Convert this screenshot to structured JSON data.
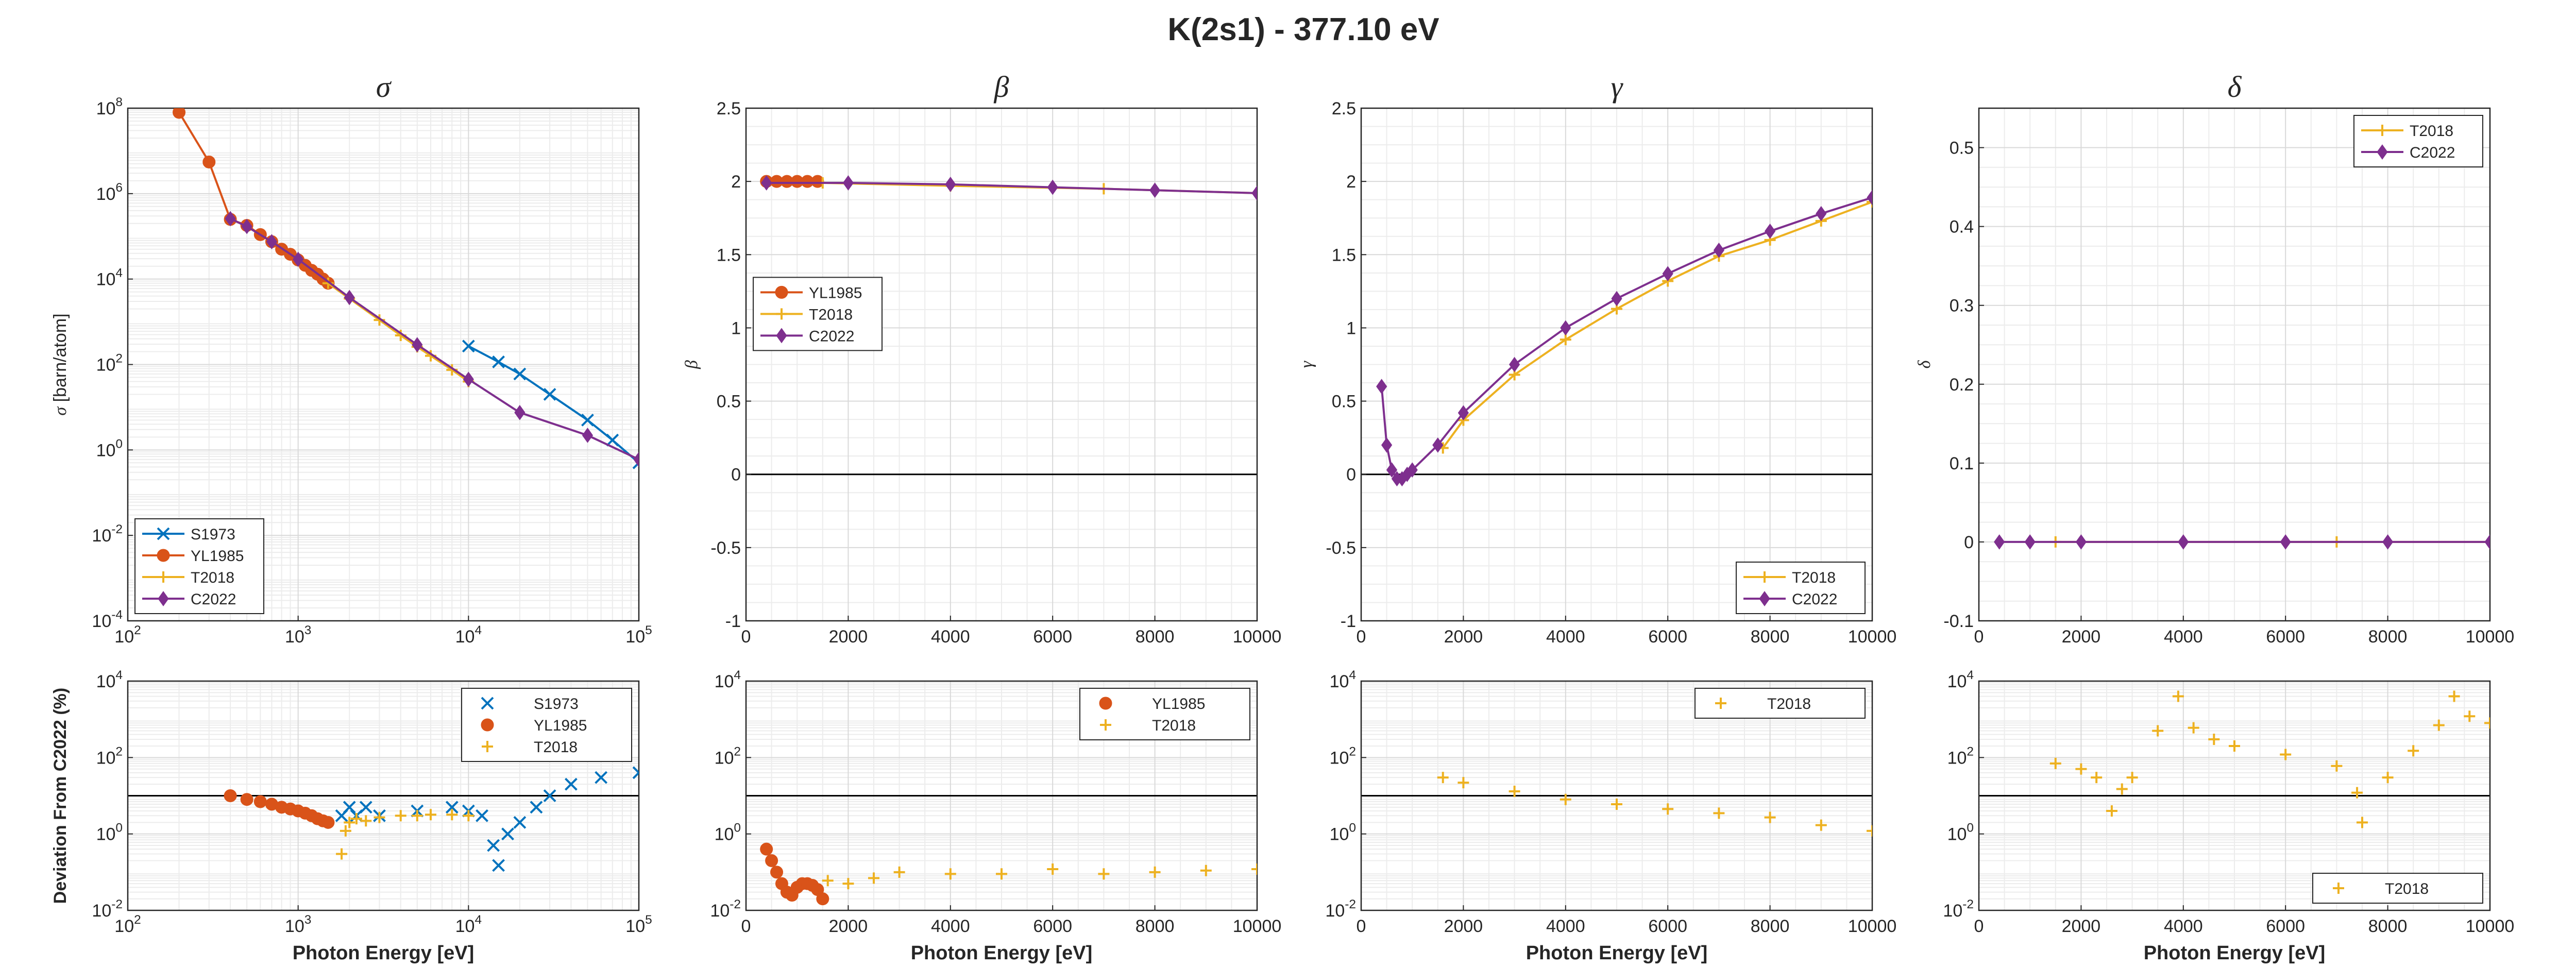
{
  "figure": {
    "title": "K(2s1) - 377.10 eV"
  },
  "chart_data": [
    {
      "id": "sigma",
      "type": "line",
      "title": "σ",
      "xlabel": "",
      "ylabel": "σ [barn/atom]",
      "xscale": "log",
      "yscale": "log",
      "xlim": [
        100,
        100000
      ],
      "ylim": [
        0.0001,
        100000000
      ],
      "xticks": [
        100,
        1000,
        10000,
        100000
      ],
      "xtick_labels": [
        "10^2",
        "10^3",
        "10^4",
        "10^5"
      ],
      "yticks": [
        0.0001,
        0.01,
        1,
        100,
        10000,
        1000000,
        100000000
      ],
      "ytick_labels": [
        "10^-4",
        "10^-2",
        "10^0",
        "10^2",
        "10^4",
        "10^6",
        "10^8"
      ],
      "grid": true,
      "minor_grid": true,
      "legend": {
        "location": "bottom-left",
        "entries": [
          "S1973",
          "YL1985",
          "T2018",
          "C2022"
        ]
      },
      "series": [
        {
          "name": "S1973",
          "color": "#0072BD",
          "marker": "x",
          "x": [
            10000,
            15000,
            20000,
            30000,
            50000,
            70000,
            100000
          ],
          "y": [
            270,
            115,
            60,
            20,
            5,
            1.7,
            0.5
          ]
        },
        {
          "name": "YL1985",
          "color": "#D95319",
          "marker": "o",
          "x": [
            200,
            300,
            400,
            500,
            600,
            700,
            800,
            900,
            1000,
            1100,
            1200,
            1300,
            1400,
            1500
          ],
          "y": [
            80000000,
            5500000,
            250000,
            180000,
            110000,
            75000,
            50000,
            38000,
            28000,
            21000,
            16000,
            13000,
            10000,
            8000
          ]
        },
        {
          "name": "T2018",
          "color": "#EDB120",
          "marker": "+",
          "x": [
            1500,
            2000,
            3000,
            4000,
            5000,
            6000,
            8000,
            10000
          ],
          "y": [
            8000,
            3500,
            1100,
            480,
            260,
            160,
            75,
            40
          ]
        },
        {
          "name": "C2022",
          "color": "#7E2F8E",
          "marker": "d",
          "x": [
            400,
            500,
            700,
            1000,
            2000,
            5000,
            10000,
            20000,
            50000,
            100000
          ],
          "y": [
            260000,
            170000,
            75000,
            29000,
            3700,
            290,
            45,
            7.5,
            2.2,
            0.6
          ]
        }
      ]
    },
    {
      "id": "beta",
      "type": "line",
      "title": "β",
      "xlabel": "",
      "ylabel": "β",
      "xscale": "linear",
      "yscale": "linear",
      "xlim": [
        0,
        10000
      ],
      "ylim": [
        -1,
        2.5
      ],
      "xticks": [
        0,
        2000,
        4000,
        6000,
        8000,
        10000
      ],
      "xtick_labels": [
        "0",
        "2000",
        "4000",
        "6000",
        "8000",
        "10000"
      ],
      "yticks": [
        -1,
        -0.5,
        0,
        0.5,
        1,
        1.5,
        2,
        2.5
      ],
      "ytick_labels": [
        "-1",
        "-0.5",
        "0",
        "0.5",
        "1",
        "1.5",
        "2",
        "2.5"
      ],
      "grid": true,
      "minor_grid": true,
      "zero_line": true,
      "legend": {
        "location": "middle-left",
        "entries": [
          "YL1985",
          "T2018",
          "C2022"
        ]
      },
      "series": [
        {
          "name": "YL1985",
          "color": "#D95319",
          "marker": "o",
          "x": [
            400,
            600,
            800,
            1000,
            1200,
            1400
          ],
          "y": [
            2.0,
            2.0,
            2.0,
            2.0,
            2.0,
            2.0
          ]
        },
        {
          "name": "T2018",
          "color": "#EDB120",
          "marker": "+",
          "x": [
            1500,
            4000,
            7000,
            10000
          ],
          "y": [
            1.99,
            1.97,
            1.95,
            1.92
          ]
        },
        {
          "name": "C2022",
          "color": "#7E2F8E",
          "marker": "d",
          "x": [
            400,
            2000,
            4000,
            6000,
            8000,
            10000
          ],
          "y": [
            1.99,
            1.99,
            1.98,
            1.96,
            1.94,
            1.92
          ]
        }
      ]
    },
    {
      "id": "gamma",
      "type": "line",
      "title": "γ",
      "xlabel": "",
      "ylabel": "γ",
      "xscale": "linear",
      "yscale": "linear",
      "xlim": [
        0,
        10000
      ],
      "ylim": [
        -1,
        2.5
      ],
      "xticks": [
        0,
        2000,
        4000,
        6000,
        8000,
        10000
      ],
      "xtick_labels": [
        "0",
        "2000",
        "4000",
        "6000",
        "8000",
        "10000"
      ],
      "yticks": [
        -1,
        -0.5,
        0,
        0.5,
        1,
        1.5,
        2,
        2.5
      ],
      "ytick_labels": [
        "-1",
        "-0.5",
        "0",
        "0.5",
        "1",
        "1.5",
        "2",
        "2.5"
      ],
      "grid": true,
      "minor_grid": true,
      "zero_line": true,
      "legend": {
        "location": "bottom-right",
        "entries": [
          "T2018",
          "C2022"
        ]
      },
      "series": [
        {
          "name": "T2018",
          "color": "#EDB120",
          "marker": "+",
          "x": [
            1600,
            2000,
            3000,
            4000,
            5000,
            6000,
            7000,
            8000,
            9000,
            10000
          ],
          "y": [
            0.18,
            0.37,
            0.68,
            0.92,
            1.13,
            1.32,
            1.49,
            1.6,
            1.73,
            1.86
          ]
        },
        {
          "name": "C2022",
          "color": "#7E2F8E",
          "marker": "d",
          "x": [
            400,
            500,
            600,
            700,
            800,
            900,
            1000,
            1500,
            2000,
            3000,
            4000,
            5000,
            6000,
            7000,
            8000,
            9000,
            10000
          ],
          "y": [
            0.6,
            0.2,
            0.03,
            -0.03,
            -0.03,
            0.0,
            0.03,
            0.2,
            0.42,
            0.75,
            1.0,
            1.2,
            1.37,
            1.53,
            1.66,
            1.78,
            1.89
          ]
        }
      ]
    },
    {
      "id": "delta",
      "type": "line",
      "title": "δ",
      "xlabel": "",
      "ylabel": "δ",
      "xscale": "linear",
      "yscale": "linear",
      "xlim": [
        0,
        10000
      ],
      "ylim": [
        -0.1,
        0.55
      ],
      "xticks": [
        0,
        2000,
        4000,
        6000,
        8000,
        10000
      ],
      "xtick_labels": [
        "0",
        "2000",
        "4000",
        "6000",
        "8000",
        "10000"
      ],
      "yticks": [
        -0.1,
        0,
        0.1,
        0.2,
        0.3,
        0.4,
        0.5
      ],
      "ytick_labels": [
        "-0.1",
        "0",
        "0.1",
        "0.2",
        "0.3",
        "0.4",
        "0.5"
      ],
      "grid": true,
      "minor_grid": true,
      "legend": {
        "location": "top-right",
        "entries": [
          "T2018",
          "C2022"
        ]
      },
      "series": [
        {
          "name": "T2018",
          "color": "#EDB120",
          "marker": "+",
          "x": [
            1500,
            4000,
            7000,
            10000
          ],
          "y": [
            0,
            0,
            0,
            0
          ]
        },
        {
          "name": "C2022",
          "color": "#7E2F8E",
          "marker": "d",
          "x": [
            400,
            1000,
            2000,
            4000,
            6000,
            8000,
            10000
          ],
          "y": [
            0,
            0,
            0,
            0,
            0,
            0,
            0
          ]
        }
      ]
    },
    {
      "id": "dev_sigma",
      "type": "scatter",
      "title": "",
      "xlabel": "Photon Energy [eV]",
      "ylabel": "Deviation From C2022 (%)",
      "xscale": "log",
      "yscale": "log",
      "xlim": [
        100,
        100000
      ],
      "ylim": [
        0.01,
        10000
      ],
      "xticks": [
        100,
        1000,
        10000,
        100000
      ],
      "xtick_labels": [
        "10^2",
        "10^3",
        "10^4",
        "10^5"
      ],
      "yticks": [
        0.01,
        1,
        100,
        10000
      ],
      "ytick_labels": [
        "10^-2",
        "10^0",
        "10^2",
        "10^4"
      ],
      "grid": true,
      "minor_grid": true,
      "ref_line": 10,
      "legend": {
        "location": "top-right",
        "entries": [
          "S1973",
          "YL1985",
          "T2018"
        ]
      },
      "series": [
        {
          "name": "S1973",
          "color": "#0072BD",
          "marker": "x",
          "x": [
            1800,
            2000,
            2200,
            2500,
            3000,
            5000,
            8000,
            10000,
            12000,
            14000,
            15000,
            17000,
            20000,
            25000,
            30000,
            40000,
            60000,
            100000
          ],
          "y": [
            3,
            5,
            3,
            5,
            3,
            4,
            5,
            4,
            3,
            0.5,
            0.15,
            1,
            2,
            5,
            10,
            20,
            30,
            40
          ]
        },
        {
          "name": "YL1985",
          "color": "#D95319",
          "marker": "o",
          "x": [
            400,
            500,
            600,
            700,
            800,
            900,
            1000,
            1100,
            1200,
            1300,
            1400,
            1500
          ],
          "y": [
            10,
            8,
            7,
            6,
            5,
            4.5,
            4,
            3.5,
            3,
            2.5,
            2.2,
            2.0
          ]
        },
        {
          "name": "T2018",
          "color": "#EDB120",
          "marker": "+",
          "x": [
            1800,
            1900,
            2000,
            2200,
            2500,
            3000,
            4000,
            5000,
            6000,
            8000,
            10000
          ],
          "y": [
            0.3,
            1.2,
            2,
            2.5,
            2.2,
            2.7,
            3,
            3,
            3.2,
            3.2,
            3.0
          ]
        }
      ]
    },
    {
      "id": "dev_beta",
      "type": "scatter",
      "title": "",
      "xlabel": "Photon Energy [eV]",
      "ylabel": "",
      "xscale": "linear",
      "yscale": "log",
      "xlim": [
        0,
        10000
      ],
      "ylim": [
        0.01,
        10000
      ],
      "xticks": [
        0,
        2000,
        4000,
        6000,
        8000,
        10000
      ],
      "xtick_labels": [
        "0",
        "2000",
        "4000",
        "6000",
        "8000",
        "10000"
      ],
      "yticks": [
        0.01,
        1,
        100,
        10000
      ],
      "ytick_labels": [
        "10^-2",
        "10^0",
        "10^2",
        "10^4"
      ],
      "grid": true,
      "minor_grid": true,
      "ref_line": 10,
      "legend": {
        "location": "top-right",
        "entries": [
          "YL1985",
          "T2018"
        ]
      },
      "series": [
        {
          "name": "YL1985",
          "color": "#D95319",
          "marker": "o",
          "x": [
            400,
            500,
            600,
            700,
            800,
            900,
            1000,
            1100,
            1200,
            1300,
            1400,
            1500
          ],
          "y": [
            0.4,
            0.2,
            0.1,
            0.05,
            0.03,
            0.025,
            0.04,
            0.05,
            0.05,
            0.045,
            0.035,
            0.02
          ]
        },
        {
          "name": "T2018",
          "color": "#EDB120",
          "marker": "+",
          "x": [
            1600,
            2000,
            2500,
            3000,
            4000,
            5000,
            6000,
            7000,
            8000,
            9000,
            10000
          ],
          "y": [
            0.06,
            0.05,
            0.07,
            0.1,
            0.09,
            0.09,
            0.12,
            0.09,
            0.1,
            0.11,
            0.12
          ]
        }
      ]
    },
    {
      "id": "dev_gamma",
      "type": "scatter",
      "title": "",
      "xlabel": "Photon Energy [eV]",
      "ylabel": "",
      "xscale": "linear",
      "yscale": "log",
      "xlim": [
        0,
        10000
      ],
      "ylim": [
        0.01,
        10000
      ],
      "xticks": [
        0,
        2000,
        4000,
        6000,
        8000,
        10000
      ],
      "xtick_labels": [
        "0",
        "2000",
        "4000",
        "6000",
        "8000",
        "10000"
      ],
      "yticks": [
        0.01,
        1,
        100,
        10000
      ],
      "ytick_labels": [
        "10^-2",
        "10^0",
        "10^2",
        "10^4"
      ],
      "grid": true,
      "minor_grid": true,
      "ref_line": 10,
      "legend": {
        "location": "top-right",
        "entries": [
          "T2018"
        ]
      },
      "series": [
        {
          "name": "T2018",
          "color": "#EDB120",
          "marker": "+",
          "x": [
            1600,
            2000,
            3000,
            4000,
            5000,
            6000,
            7000,
            8000,
            9000,
            10000
          ],
          "y": [
            30,
            22,
            13,
            8,
            6,
            4.5,
            3.5,
            2.7,
            1.7,
            1.2
          ]
        }
      ]
    },
    {
      "id": "dev_delta",
      "type": "scatter",
      "title": "",
      "xlabel": "Photon Energy [eV]",
      "ylabel": "",
      "xscale": "linear",
      "yscale": "log",
      "xlim": [
        0,
        10000
      ],
      "ylim": [
        0.01,
        10000
      ],
      "xticks": [
        0,
        2000,
        4000,
        6000,
        8000,
        10000
      ],
      "xtick_labels": [
        "0",
        "2000",
        "4000",
        "6000",
        "8000",
        "10000"
      ],
      "yticks": [
        0.01,
        1,
        100,
        10000
      ],
      "ytick_labels": [
        "10^-2",
        "10^0",
        "10^2",
        "10^4"
      ],
      "grid": true,
      "minor_grid": true,
      "ref_line": 10,
      "legend": {
        "location": "bottom-right",
        "entries": [
          "T2018"
        ]
      },
      "series": [
        {
          "name": "T2018",
          "color": "#EDB120",
          "marker": "+",
          "x": [
            1500,
            2000,
            2300,
            2600,
            2800,
            3000,
            3500,
            3900,
            4200,
            4600,
            5000,
            6000,
            7000,
            7400,
            7500,
            8000,
            8500,
            9000,
            9300,
            9600,
            10000
          ],
          "y": [
            70,
            50,
            30,
            4,
            15,
            30,
            500,
            4000,
            600,
            300,
            200,
            120,
            60,
            12,
            2,
            30,
            150,
            700,
            4000,
            1200,
            800
          ]
        }
      ]
    }
  ]
}
